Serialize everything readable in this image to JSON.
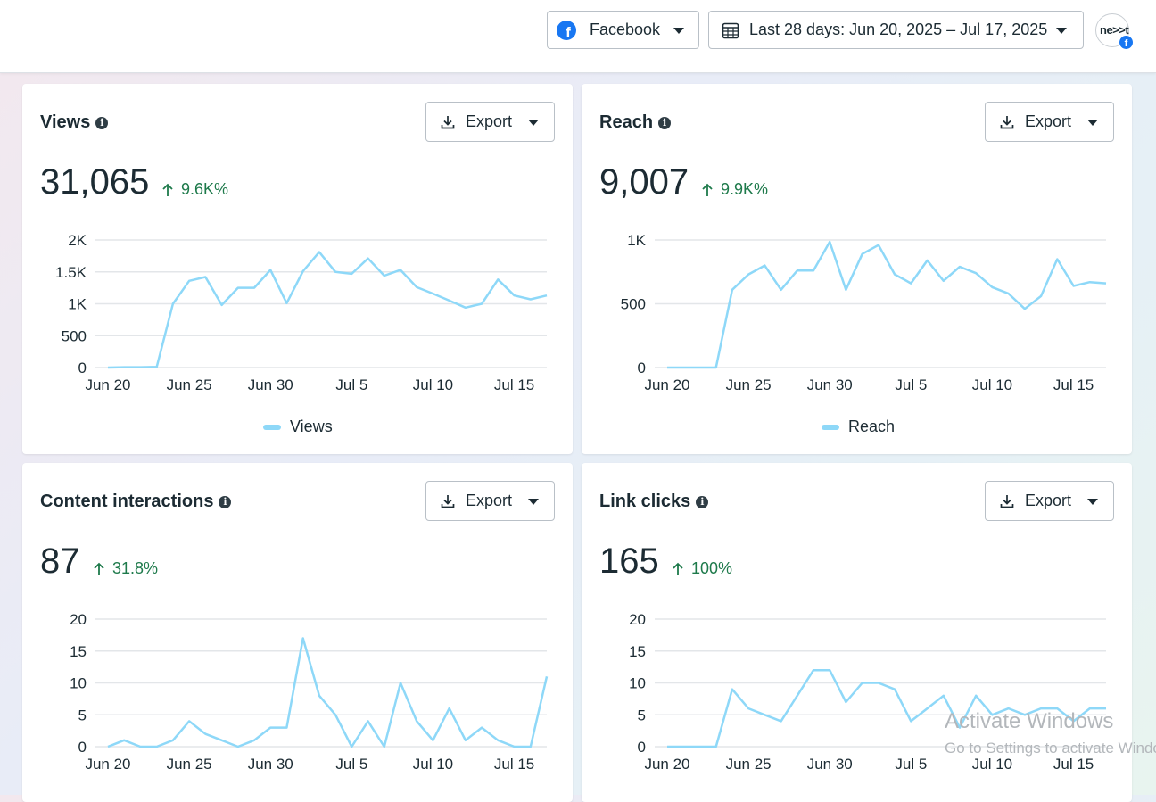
{
  "header": {
    "platform_label": "Facebook",
    "date_range_label": "Last 28 days: Jun 20, 2025 – Jul 17, 2025",
    "avatar_logo": "ne>>t",
    "avatar_badge": "f"
  },
  "export_label": "Export",
  "cards": [
    {
      "title": "Views",
      "value": "31,065",
      "change": "9.6K%",
      "legend": "Views",
      "chart_data": {
        "type": "line",
        "x": [
          "Jun 20",
          "Jun 21",
          "Jun 22",
          "Jun 23",
          "Jun 24",
          "Jun 25",
          "Jun 26",
          "Jun 27",
          "Jun 28",
          "Jun 29",
          "Jun 30",
          "Jul 1",
          "Jul 2",
          "Jul 3",
          "Jul 4",
          "Jul 5",
          "Jul 6",
          "Jul 7",
          "Jul 8",
          "Jul 9",
          "Jul 10",
          "Jul 11",
          "Jul 12",
          "Jul 13",
          "Jul 14",
          "Jul 15",
          "Jul 16",
          "Jul 17"
        ],
        "series": [
          {
            "name": "Views",
            "values": [
              0,
              5,
              5,
              10,
              1000,
              1360,
              1420,
              980,
              1250,
              1250,
              1530,
              1010,
              1510,
              1810,
              1500,
              1470,
              1710,
              1440,
              1530,
              1260,
              1160,
              1050,
              940,
              1000,
              1380,
              1130,
              1070,
              1130
            ]
          }
        ],
        "ylim": [
          0,
          2000
        ],
        "yticks": [
          0,
          500,
          1000,
          1500,
          2000
        ],
        "ytick_labels": [
          "0",
          "500",
          "1K",
          "1.5K",
          "2K"
        ],
        "xtick_labels": [
          "Jun 20",
          "Jun 25",
          "Jun 30",
          "Jul 5",
          "Jul 10",
          "Jul 15"
        ],
        "grid": true,
        "legend_position": "bottom"
      }
    },
    {
      "title": "Reach",
      "value": "9,007",
      "change": "9.9K%",
      "legend": "Reach",
      "chart_data": {
        "type": "line",
        "x": [
          "Jun 20",
          "Jun 21",
          "Jun 22",
          "Jun 23",
          "Jun 24",
          "Jun 25",
          "Jun 26",
          "Jun 27",
          "Jun 28",
          "Jun 29",
          "Jun 30",
          "Jul 1",
          "Jul 2",
          "Jul 3",
          "Jul 4",
          "Jul 5",
          "Jul 6",
          "Jul 7",
          "Jul 8",
          "Jul 9",
          "Jul 10",
          "Jul 11",
          "Jul 12",
          "Jul 13",
          "Jul 14",
          "Jul 15",
          "Jul 16",
          "Jul 17"
        ],
        "series": [
          {
            "name": "Reach",
            "values": [
              0,
              0,
              0,
              0,
              610,
              730,
              800,
              610,
              760,
              760,
              985,
              610,
              890,
              960,
              730,
              660,
              840,
              680,
              790,
              740,
              630,
              580,
              460,
              560,
              850,
              640,
              670,
              660
            ]
          }
        ],
        "ylim": [
          0,
          1000
        ],
        "yticks": [
          0,
          500,
          1000
        ],
        "ytick_labels": [
          "0",
          "500",
          "1K"
        ],
        "xtick_labels": [
          "Jun 20",
          "Jun 25",
          "Jun 30",
          "Jul 5",
          "Jul 10",
          "Jul 15"
        ],
        "grid": true,
        "legend_position": "bottom"
      }
    },
    {
      "title": "Content interactions",
      "value": "87",
      "change": "31.8%",
      "chart_data": {
        "type": "line",
        "x": [
          "Jun 20",
          "Jun 21",
          "Jun 22",
          "Jun 23",
          "Jun 24",
          "Jun 25",
          "Jun 26",
          "Jun 27",
          "Jun 28",
          "Jun 29",
          "Jun 30",
          "Jul 1",
          "Jul 2",
          "Jul 3",
          "Jul 4",
          "Jul 5",
          "Jul 6",
          "Jul 7",
          "Jul 8",
          "Jul 9",
          "Jul 10",
          "Jul 11",
          "Jul 12",
          "Jul 13",
          "Jul 14",
          "Jul 15",
          "Jul 16",
          "Jul 17"
        ],
        "series": [
          {
            "values": [
              0,
              1,
              0,
              0,
              1,
              4,
              2,
              1,
              0,
              1,
              3,
              3,
              17,
              8,
              5,
              0,
              4,
              0,
              10,
              4,
              1,
              6,
              1,
              3,
              1,
              0,
              0,
              11
            ]
          }
        ],
        "ylim": [
          0,
          20
        ],
        "yticks": [
          0,
          5,
          10,
          15,
          20
        ],
        "ytick_labels": [
          "0",
          "5",
          "10",
          "15",
          "20"
        ],
        "xtick_labels": [
          "Jun 20",
          "Jun 25",
          "Jun 30",
          "Jul 5",
          "Jul 10",
          "Jul 15"
        ],
        "grid": true
      }
    },
    {
      "title": "Link clicks",
      "value": "165",
      "change": "100%",
      "chart_data": {
        "type": "line",
        "x": [
          "Jun 20",
          "Jun 21",
          "Jun 22",
          "Jun 23",
          "Jun 24",
          "Jun 25",
          "Jun 26",
          "Jun 27",
          "Jun 28",
          "Jun 29",
          "Jun 30",
          "Jul 1",
          "Jul 2",
          "Jul 3",
          "Jul 4",
          "Jul 5",
          "Jul 6",
          "Jul 7",
          "Jul 8",
          "Jul 9",
          "Jul 10",
          "Jul 11",
          "Jul 12",
          "Jul 13",
          "Jul 14",
          "Jul 15",
          "Jul 16",
          "Jul 17"
        ],
        "series": [
          {
            "values": [
              0,
              0,
              0,
              0,
              9,
              6,
              5,
              4,
              8,
              12,
              12,
              7,
              10,
              10,
              9,
              4,
              6,
              8,
              3,
              8,
              5,
              6,
              5,
              6,
              6,
              4,
              6,
              6
            ]
          }
        ],
        "ylim": [
          0,
          20
        ],
        "yticks": [
          0,
          5,
          10,
          15,
          20
        ],
        "ytick_labels": [
          "0",
          "5",
          "10",
          "15",
          "20"
        ],
        "xtick_labels": [
          "Jun 20",
          "Jun 25",
          "Jun 30",
          "Jul 5",
          "Jul 10",
          "Jul 15"
        ],
        "grid": true
      }
    }
  ],
  "colors": {
    "line": "#8ed8f8",
    "grid": "#e3e6e9",
    "positive": "#1e7a4b",
    "text": "#1c2b33"
  },
  "watermark": {
    "line1": "Activate Windows",
    "line2": "Go to Settings to activate Windows."
  }
}
